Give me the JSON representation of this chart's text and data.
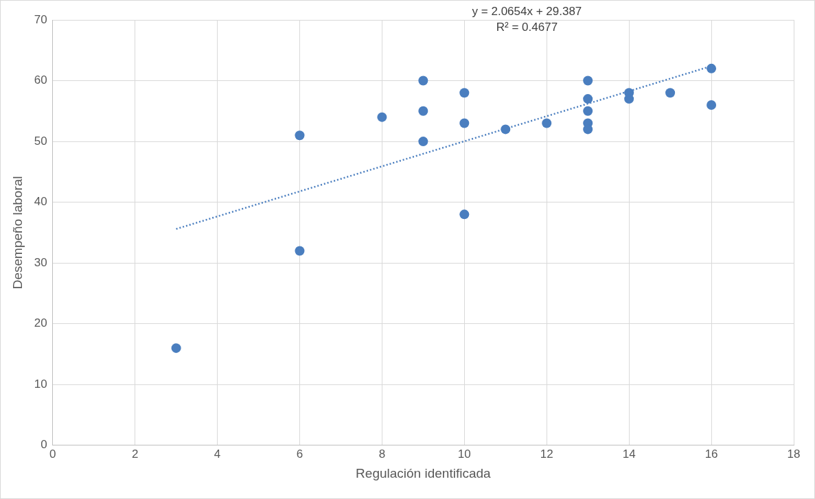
{
  "chart_data": {
    "type": "scatter",
    "xlabel": "Regulación identificada",
    "ylabel": "Desempeño laboral",
    "annotations": [
      "y = 2.0654x + 29.387",
      "R² = 0.4677"
    ],
    "series": [
      {
        "type": "scatter",
        "color": "#4a7ebf",
        "x": [
          3,
          6,
          6,
          8,
          9,
          9,
          9,
          10,
          10,
          10,
          11,
          12,
          13,
          13,
          13,
          13,
          13,
          14,
          14,
          15,
          16,
          16
        ],
        "values": [
          16,
          51,
          32,
          54,
          60,
          55,
          50,
          58,
          53,
          38,
          52,
          53,
          60,
          57,
          55,
          53,
          52,
          58,
          57,
          58,
          62,
          56
        ]
      },
      {
        "type": "line",
        "color": "#4a7ebf",
        "line_style": "dotted",
        "marker": "none",
        "x": [
          3,
          16
        ],
        "values": [
          35.6,
          62.4
        ]
      }
    ],
    "marker": "circle",
    "xlim": [
      0,
      18
    ],
    "xticks": [
      0,
      2,
      4,
      6,
      8,
      10,
      12,
      14,
      16,
      18
    ],
    "ylim": [
      0,
      70
    ],
    "yticks": [
      0,
      10,
      20,
      30,
      40,
      50,
      60,
      70
    ],
    "grid": true,
    "legend": false
  }
}
